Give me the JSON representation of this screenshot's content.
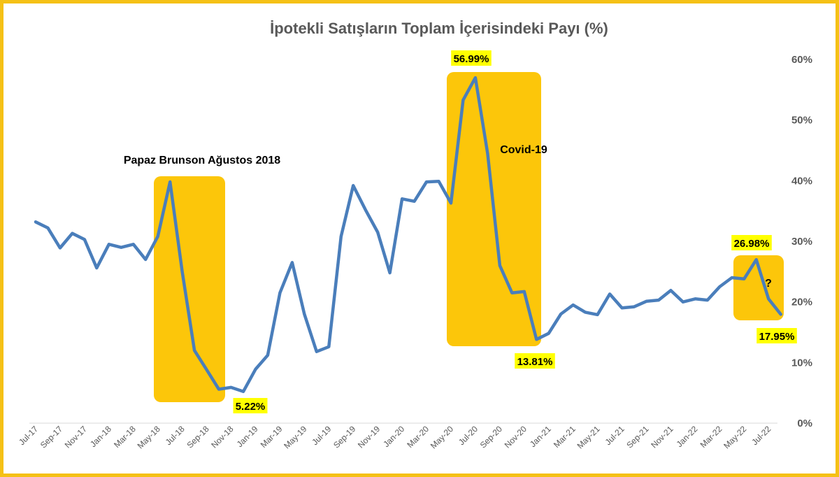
{
  "chart_data": {
    "type": "line",
    "title": "İpotekli Satışların Toplam İçerisindeki Payı (%)",
    "xlabel": "",
    "ylabel": "",
    "ylim": [
      0,
      60
    ],
    "yticks": [
      "0%",
      "10%",
      "20%",
      "30%",
      "40%",
      "50%",
      "60%"
    ],
    "grid": false,
    "x": [
      "Jul-17",
      "Aug-17",
      "Sep-17",
      "Oct-17",
      "Nov-17",
      "Dec-17",
      "Jan-18",
      "Feb-18",
      "Mar-18",
      "Apr-18",
      "May-18",
      "Jun-18",
      "Jul-18",
      "Aug-18",
      "Sep-18",
      "Oct-18",
      "Nov-18",
      "Dec-18",
      "Jan-19",
      "Feb-19",
      "Mar-19",
      "Apr-19",
      "May-19",
      "Jun-19",
      "Jul-19",
      "Aug-19",
      "Sep-19",
      "Oct-19",
      "Nov-19",
      "Dec-19",
      "Jan-20",
      "Feb-20",
      "Mar-20",
      "Apr-20",
      "May-20",
      "Jun-20",
      "Jul-20",
      "Aug-20",
      "Sep-20",
      "Oct-20",
      "Nov-20",
      "Dec-20",
      "Jan-21",
      "Feb-21",
      "Mar-21",
      "Apr-21",
      "May-21",
      "Jun-21",
      "Jul-21",
      "Aug-21",
      "Sep-21",
      "Oct-21",
      "Nov-21",
      "Dec-21",
      "Jan-22",
      "Feb-22",
      "Mar-22",
      "Apr-22",
      "May-22",
      "Jun-22",
      "Jul-22",
      "Aug-22"
    ],
    "xtick_labels": [
      "Jul-17",
      "Sep-17",
      "Nov-17",
      "Jan-18",
      "Mar-18",
      "May-18",
      "Jul-18",
      "Sep-18",
      "Nov-18",
      "Jan-19",
      "Mar-19",
      "May-19",
      "Jul-19",
      "Sep-19",
      "Nov-19",
      "Jan-20",
      "Mar-20",
      "May-20",
      "Jul-20",
      "Sep-20",
      "Nov-20",
      "Jan-21",
      "Mar-21",
      "May-21",
      "Jul-21",
      "Sep-21",
      "Nov-21",
      "Jan-22",
      "Mar-22",
      "May-22",
      "Jul-22"
    ],
    "series": [
      {
        "color": "#4a7ebb",
        "values": [
          33.2,
          32.2,
          28.9,
          31.3,
          30.3,
          25.6,
          29.5,
          29.0,
          29.5,
          27.0,
          30.8,
          39.8,
          25.0,
          12.0,
          8.8,
          5.6,
          5.9,
          5.22,
          8.9,
          11.2,
          21.5,
          26.5,
          18.0,
          11.8,
          12.6,
          30.8,
          39.2,
          35.2,
          31.5,
          24.8,
          37.0,
          36.6,
          39.8,
          39.9,
          36.3,
          53.3,
          56.99,
          44.5,
          26.0,
          21.5,
          21.7,
          13.81,
          14.8,
          18.0,
          19.5,
          18.3,
          17.9,
          21.3,
          19.0,
          19.2,
          20.1,
          20.3,
          21.9,
          20.0,
          20.5,
          20.3,
          22.5,
          24.0,
          23.8,
          26.98,
          20.5,
          17.95
        ]
      }
    ],
    "data_labels": [
      {
        "text": "56.99%",
        "index": 36,
        "value": 56.99
      },
      {
        "text": "5.22%",
        "index": 17,
        "value": 5.22
      },
      {
        "text": "13.81%",
        "index": 41,
        "value": 13.81
      },
      {
        "text": "26.98%",
        "index": 59,
        "value": 26.98
      },
      {
        "text": "17.95%",
        "index": 61,
        "value": 17.95
      }
    ],
    "annotations": [
      {
        "text": "Papaz Brunson Ağustos 2018"
      },
      {
        "text": "Covid-19"
      },
      {
        "text": "?"
      }
    ],
    "highlight_color": "#fcc60a",
    "label_background": "#ffff00",
    "frame_color": "#f5c116"
  }
}
